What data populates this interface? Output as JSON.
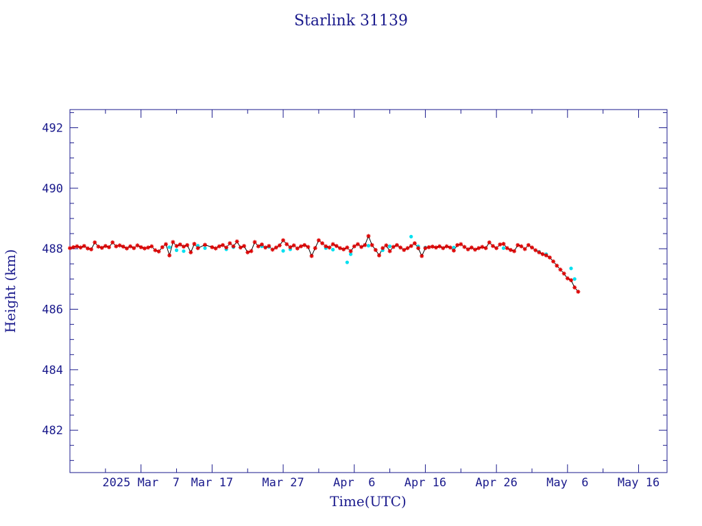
{
  "chart_data": {
    "type": "scatter",
    "title": "Starlink 31139",
    "xlabel": "Time(UTC)",
    "ylabel": "Height (km)",
    "xlim": [
      "2025-02-25",
      "2025-05-20"
    ],
    "ylim": [
      480.6,
      492.6
    ],
    "x_ticks": [
      {
        "date": "2025-03-07",
        "label": "2025 Mar  7"
      },
      {
        "date": "2025-03-17",
        "label": "Mar 17"
      },
      {
        "date": "2025-03-27",
        "label": "Mar 27"
      },
      {
        "date": "2025-04-06",
        "label": "Apr  6"
      },
      {
        "date": "2025-04-16",
        "label": "Apr 16"
      },
      {
        "date": "2025-04-26",
        "label": "Apr 26"
      },
      {
        "date": "2025-05-06",
        "label": "May  6"
      },
      {
        "date": "2025-05-16",
        "label": "May 16"
      }
    ],
    "x_minor_step_days": 5,
    "y_ticks": [
      482,
      484,
      486,
      488,
      490,
      492
    ],
    "y_minor_step": 0.5,
    "colors": {
      "axis": "#1a1a8c",
      "line": "#000000",
      "main_marker": "#dd0000",
      "alt_marker": "#00e0f0"
    },
    "series": [
      {
        "marker": "red-asterisk",
        "connected": true,
        "points": [
          [
            "2025-02-25",
            488.02
          ],
          [
            "2025-02-25T12",
            488.05
          ],
          [
            "2025-02-26",
            488.08
          ],
          [
            "2025-02-26T12",
            488.04
          ],
          [
            "2025-02-27",
            488.09
          ],
          [
            "2025-02-27T12",
            488.01
          ],
          [
            "2025-02-28",
            487.98
          ],
          [
            "2025-02-28T12",
            488.21
          ],
          [
            "2025-03-01",
            488.07
          ],
          [
            "2025-03-01T12",
            488.03
          ],
          [
            "2025-03-02",
            488.09
          ],
          [
            "2025-03-02T12",
            488.05
          ],
          [
            "2025-03-03",
            488.21
          ],
          [
            "2025-03-03T12",
            488.08
          ],
          [
            "2025-03-04",
            488.11
          ],
          [
            "2025-03-04T12",
            488.07
          ],
          [
            "2025-03-05",
            488.01
          ],
          [
            "2025-03-05T12",
            488.08
          ],
          [
            "2025-03-06",
            488.02
          ],
          [
            "2025-03-06T12",
            488.11
          ],
          [
            "2025-03-07",
            488.05
          ],
          [
            "2025-03-07T12",
            488.01
          ],
          [
            "2025-03-08",
            488.04
          ],
          [
            "2025-03-08T12",
            488.08
          ],
          [
            "2025-03-09",
            487.95
          ],
          [
            "2025-03-09T12",
            487.91
          ],
          [
            "2025-03-10",
            488.05
          ],
          [
            "2025-03-10T12",
            488.15
          ],
          [
            "2025-03-11",
            487.78
          ],
          [
            "2025-03-11T12",
            488.22
          ],
          [
            "2025-03-12",
            488.09
          ],
          [
            "2025-03-12T12",
            488.14
          ],
          [
            "2025-03-13",
            488.07
          ],
          [
            "2025-03-13T12",
            488.12
          ],
          [
            "2025-03-14",
            487.88
          ],
          [
            "2025-03-14T12",
            488.16
          ],
          [
            "2025-03-15",
            488.02
          ],
          [
            "2025-03-16",
            488.13
          ],
          [
            "2025-03-17",
            488.05
          ],
          [
            "2025-03-17T12",
            488.01
          ],
          [
            "2025-03-18",
            488.08
          ],
          [
            "2025-03-18T12",
            488.12
          ],
          [
            "2025-03-19",
            488.04
          ],
          [
            "2025-03-19T12",
            488.18
          ],
          [
            "2025-03-20",
            488.08
          ],
          [
            "2025-03-20T12",
            488.24
          ],
          [
            "2025-03-21",
            488.04
          ],
          [
            "2025-03-21T12",
            488.09
          ],
          [
            "2025-03-22",
            487.88
          ],
          [
            "2025-03-22T12",
            487.92
          ],
          [
            "2025-03-23",
            488.22
          ],
          [
            "2025-03-23T12",
            488.08
          ],
          [
            "2025-03-24",
            488.14
          ],
          [
            "2025-03-24T12",
            488.04
          ],
          [
            "2025-03-25",
            488.09
          ],
          [
            "2025-03-25T12",
            487.97
          ],
          [
            "2025-03-26",
            488.04
          ],
          [
            "2025-03-26T12",
            488.11
          ],
          [
            "2025-03-27",
            488.28
          ],
          [
            "2025-03-27T12",
            488.15
          ],
          [
            "2025-03-28",
            488.05
          ],
          [
            "2025-03-28T12",
            488.11
          ],
          [
            "2025-03-29",
            488.01
          ],
          [
            "2025-03-29T12",
            488.08
          ],
          [
            "2025-03-30",
            488.12
          ],
          [
            "2025-03-30T12",
            488.06
          ],
          [
            "2025-03-31",
            487.76
          ],
          [
            "2025-03-31T12",
            488.02
          ],
          [
            "2025-04-01",
            488.28
          ],
          [
            "2025-04-01T12",
            488.18
          ],
          [
            "2025-04-02",
            488.08
          ],
          [
            "2025-04-02T12",
            488.04
          ],
          [
            "2025-04-03",
            488.15
          ],
          [
            "2025-04-03T12",
            488.09
          ],
          [
            "2025-04-04",
            488.02
          ],
          [
            "2025-04-04T12",
            487.98
          ],
          [
            "2025-04-05",
            488.04
          ],
          [
            "2025-04-05T12",
            487.92
          ],
          [
            "2025-04-06",
            488.08
          ],
          [
            "2025-04-06T12",
            488.15
          ],
          [
            "2025-04-07",
            488.06
          ],
          [
            "2025-04-07T12",
            488.12
          ],
          [
            "2025-04-08",
            488.42
          ],
          [
            "2025-04-08T12",
            488.12
          ],
          [
            "2025-04-09",
            487.96
          ],
          [
            "2025-04-09T12",
            487.78
          ],
          [
            "2025-04-10",
            488.02
          ],
          [
            "2025-04-10T12",
            488.11
          ],
          [
            "2025-04-11",
            487.92
          ],
          [
            "2025-04-11T12",
            488.06
          ],
          [
            "2025-04-12",
            488.12
          ],
          [
            "2025-04-12T12",
            488.04
          ],
          [
            "2025-04-13",
            487.96
          ],
          [
            "2025-04-13T12",
            488.02
          ],
          [
            "2025-04-14",
            488.09
          ],
          [
            "2025-04-14T12",
            488.18
          ],
          [
            "2025-04-15",
            488.02
          ],
          [
            "2025-04-15T12",
            487.76
          ],
          [
            "2025-04-16",
            488.02
          ],
          [
            "2025-04-16T12",
            488.05
          ],
          [
            "2025-04-17",
            488.07
          ],
          [
            "2025-04-17T12",
            488.04
          ],
          [
            "2025-04-18",
            488.08
          ],
          [
            "2025-04-18T12",
            488.02
          ],
          [
            "2025-04-19",
            488.08
          ],
          [
            "2025-04-19T12",
            488.04
          ],
          [
            "2025-04-20",
            487.94
          ],
          [
            "2025-04-20T12",
            488.12
          ],
          [
            "2025-04-21",
            488.15
          ],
          [
            "2025-04-21T12",
            488.06
          ],
          [
            "2025-04-22",
            487.98
          ],
          [
            "2025-04-22T12",
            488.04
          ],
          [
            "2025-04-23",
            487.97
          ],
          [
            "2025-04-23T12",
            488.02
          ],
          [
            "2025-04-24",
            488.06
          ],
          [
            "2025-04-24T12",
            488.02
          ],
          [
            "2025-04-25",
            488.21
          ],
          [
            "2025-04-25T12",
            488.09
          ],
          [
            "2025-04-26",
            488.02
          ],
          [
            "2025-04-26T12",
            488.14
          ],
          [
            "2025-04-27",
            488.16
          ],
          [
            "2025-04-27T12",
            488.02
          ],
          [
            "2025-04-28",
            487.96
          ],
          [
            "2025-04-28T12",
            487.92
          ],
          [
            "2025-04-29",
            488.12
          ],
          [
            "2025-04-29T12",
            488.08
          ],
          [
            "2025-04-30",
            487.99
          ],
          [
            "2025-04-30T12",
            488.12
          ],
          [
            "2025-05-01",
            488.04
          ],
          [
            "2025-05-01T12",
            487.95
          ],
          [
            "2025-05-02",
            487.88
          ],
          [
            "2025-05-02T12",
            487.82
          ],
          [
            "2025-05-03",
            487.78
          ],
          [
            "2025-05-03T12",
            487.71
          ],
          [
            "2025-05-04",
            487.58
          ],
          [
            "2025-05-04T12",
            487.44
          ],
          [
            "2025-05-05",
            487.31
          ],
          [
            "2025-05-05T12",
            487.18
          ],
          [
            "2025-05-06",
            487.02
          ],
          [
            "2025-05-06T12",
            486.96
          ],
          [
            "2025-05-07",
            486.72
          ],
          [
            "2025-05-07T12",
            486.58
          ]
        ]
      },
      {
        "marker": "cyan-dot",
        "connected": false,
        "points": [
          [
            "2025-03-11",
            488.05
          ],
          [
            "2025-03-12",
            487.95
          ],
          [
            "2025-03-13",
            487.92
          ],
          [
            "2025-03-15",
            488.1
          ],
          [
            "2025-03-16",
            488.02
          ],
          [
            "2025-03-19",
            487.98
          ],
          [
            "2025-03-20",
            488.05
          ],
          [
            "2025-03-24",
            488.08
          ],
          [
            "2025-03-25",
            488.06
          ],
          [
            "2025-03-27",
            487.93
          ],
          [
            "2025-03-28",
            487.98
          ],
          [
            "2025-04-02",
            488.02
          ],
          [
            "2025-04-03",
            487.97
          ],
          [
            "2025-04-05",
            487.55
          ],
          [
            "2025-04-05T12",
            487.82
          ],
          [
            "2025-04-08",
            488.1
          ],
          [
            "2025-04-10",
            487.95
          ],
          [
            "2025-04-11",
            488.08
          ],
          [
            "2025-04-14",
            488.4
          ],
          [
            "2025-04-15",
            488.08
          ],
          [
            "2025-04-16",
            488.04
          ],
          [
            "2025-04-20",
            488.04
          ],
          [
            "2025-04-27",
            488.02
          ],
          [
            "2025-05-02",
            487.9
          ],
          [
            "2025-05-03",
            487.82
          ],
          [
            "2025-05-06T12",
            487.35
          ],
          [
            "2025-05-07",
            487.0
          ]
        ]
      }
    ]
  }
}
